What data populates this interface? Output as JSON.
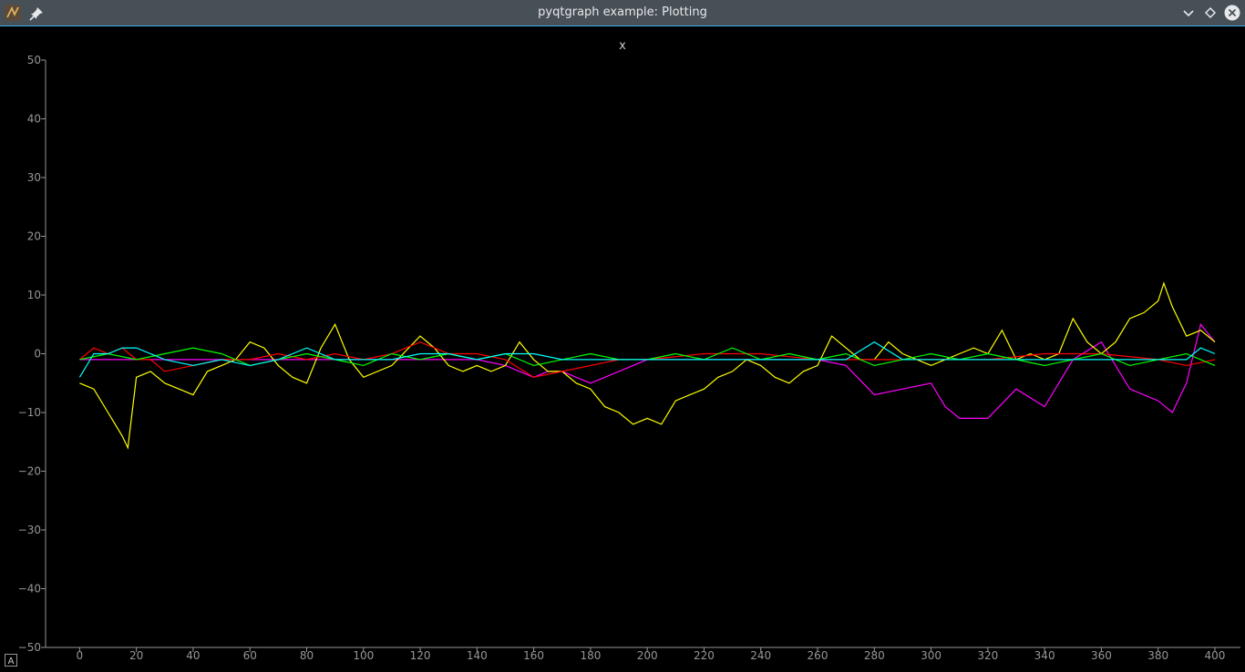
{
  "window": {
    "title": "pyqtgraph example: Plotting"
  },
  "icons": {
    "app": "pyqtgraph-app-icon",
    "pin": "pin-icon",
    "minimize": "chevron-down-icon",
    "maximize": "diamond-icon",
    "close": "close-icon",
    "auto_range": "auto-range-icon"
  },
  "plot": {
    "title": "x",
    "auto_range_label": "A"
  },
  "chart_data": {
    "type": "line",
    "title": "x",
    "xlabel": "",
    "ylabel": "",
    "xlim": [
      -12,
      409
    ],
    "ylim": [
      -50,
      50
    ],
    "x_ticks": [
      0,
      20,
      40,
      60,
      80,
      100,
      120,
      140,
      160,
      180,
      200,
      220,
      240,
      260,
      280,
      300,
      320,
      340,
      360,
      380,
      400
    ],
    "y_ticks": [
      -50,
      -40,
      -30,
      -20,
      -10,
      0,
      10,
      20,
      30,
      40,
      50
    ],
    "grid": false,
    "background": "#000000",
    "axis_color": "#969696",
    "series": [
      {
        "color": "#ff00ff",
        "x": [
          0,
          20,
          40,
          60,
          80,
          100,
          120,
          140,
          150,
          160,
          165,
          170,
          180,
          190,
          200,
          210,
          220,
          240,
          260,
          270,
          280,
          290,
          300,
          305,
          310,
          320,
          330,
          340,
          350,
          360,
          370,
          380,
          385,
          390,
          395,
          400
        ],
        "y": [
          -1,
          -1,
          -1,
          -1,
          -1,
          -1,
          -1,
          -1,
          -2,
          -4,
          -3,
          -3,
          -5,
          -3,
          -1,
          -1,
          -1,
          -1,
          -1,
          -2,
          -7,
          -6,
          -5,
          -9,
          -11,
          -11,
          -6,
          -9,
          -1,
          2,
          -6,
          -8,
          -10,
          -5,
          5,
          2
        ]
      },
      {
        "color": "#ffff00",
        "x": [
          0,
          5,
          10,
          15,
          17,
          20,
          25,
          30,
          35,
          40,
          45,
          50,
          55,
          60,
          65,
          70,
          75,
          80,
          85,
          90,
          95,
          100,
          110,
          120,
          125,
          130,
          135,
          140,
          145,
          150,
          155,
          160,
          165,
          170,
          175,
          180,
          185,
          190,
          195,
          200,
          205,
          210,
          215,
          220,
          225,
          230,
          235,
          240,
          245,
          250,
          255,
          260,
          265,
          270,
          275,
          280,
          285,
          290,
          295,
          300,
          305,
          310,
          315,
          320,
          325,
          330,
          335,
          340,
          345,
          350,
          355,
          360,
          365,
          370,
          375,
          380,
          382,
          385,
          390,
          395,
          400
        ],
        "y": [
          -5,
          -6,
          -10,
          -14,
          -16,
          -4,
          -3,
          -5,
          -6,
          -7,
          -3,
          -2,
          -1,
          2,
          1,
          -2,
          -4,
          -5,
          1,
          5,
          -1,
          -4,
          -2,
          3,
          1,
          -2,
          -3,
          -2,
          -3,
          -2,
          2,
          -1,
          -3,
          -3,
          -5,
          -6,
          -9,
          -10,
          -12,
          -11,
          -12,
          -8,
          -7,
          -6,
          -4,
          -3,
          -1,
          -2,
          -4,
          -5,
          -3,
          -2,
          3,
          1,
          -1,
          -1,
          2,
          0,
          -1,
          -2,
          -1,
          0,
          1,
          0,
          4,
          -1,
          0,
          -1,
          0,
          6,
          2,
          0,
          2,
          6,
          7,
          9,
          12,
          8,
          3,
          4,
          2
        ]
      },
      {
        "color": "#ff0000",
        "x": [
          0,
          5,
          10,
          15,
          20,
          25,
          30,
          40,
          50,
          60,
          70,
          80,
          90,
          100,
          110,
          120,
          125,
          130,
          140,
          150,
          160,
          170,
          180,
          190,
          200,
          220,
          240,
          260,
          280,
          300,
          320,
          340,
          360,
          380,
          390,
          400
        ],
        "y": [
          -1,
          1,
          0,
          1,
          -1,
          -1,
          -3,
          -2,
          -1,
          -1,
          0,
          -1,
          0,
          -1,
          0,
          2,
          1,
          0,
          0,
          -1,
          -4,
          -3,
          -2,
          -1,
          -1,
          0,
          0,
          -1,
          -1,
          -1,
          -1,
          0,
          0,
          -1,
          -2,
          -1
        ]
      },
      {
        "color": "#00ff00",
        "x": [
          0,
          10,
          20,
          30,
          40,
          50,
          60,
          70,
          80,
          90,
          100,
          110,
          120,
          130,
          140,
          150,
          160,
          170,
          180,
          190,
          200,
          210,
          220,
          230,
          240,
          250,
          260,
          270,
          280,
          290,
          300,
          310,
          320,
          330,
          340,
          350,
          360,
          370,
          380,
          390,
          400
        ],
        "y": [
          -1,
          0,
          -1,
          0,
          1,
          0,
          -2,
          -1,
          0,
          -1,
          -2,
          0,
          -1,
          0,
          -1,
          0,
          -2,
          -1,
          0,
          -1,
          -1,
          0,
          -1,
          1,
          -1,
          0,
          -1,
          0,
          -2,
          -1,
          0,
          -1,
          0,
          -1,
          -2,
          -1,
          0,
          -2,
          -1,
          0,
          -2
        ]
      },
      {
        "color": "#00ffff",
        "x": [
          0,
          5,
          10,
          15,
          20,
          30,
          40,
          50,
          60,
          70,
          80,
          90,
          100,
          110,
          120,
          130,
          140,
          150,
          160,
          170,
          180,
          190,
          200,
          220,
          240,
          260,
          270,
          280,
          290,
          300,
          320,
          340,
          360,
          370,
          380,
          390,
          395,
          400
        ],
        "y": [
          -4,
          0,
          0,
          1,
          1,
          -1,
          -2,
          -1,
          -2,
          -1,
          1,
          -1,
          -1,
          -1,
          0,
          0,
          -1,
          0,
          0,
          -1,
          -1,
          -1,
          -1,
          -1,
          -1,
          -1,
          -1,
          2,
          -1,
          -1,
          -1,
          -1,
          -1,
          -1,
          -1,
          -1,
          1,
          0
        ]
      }
    ]
  }
}
